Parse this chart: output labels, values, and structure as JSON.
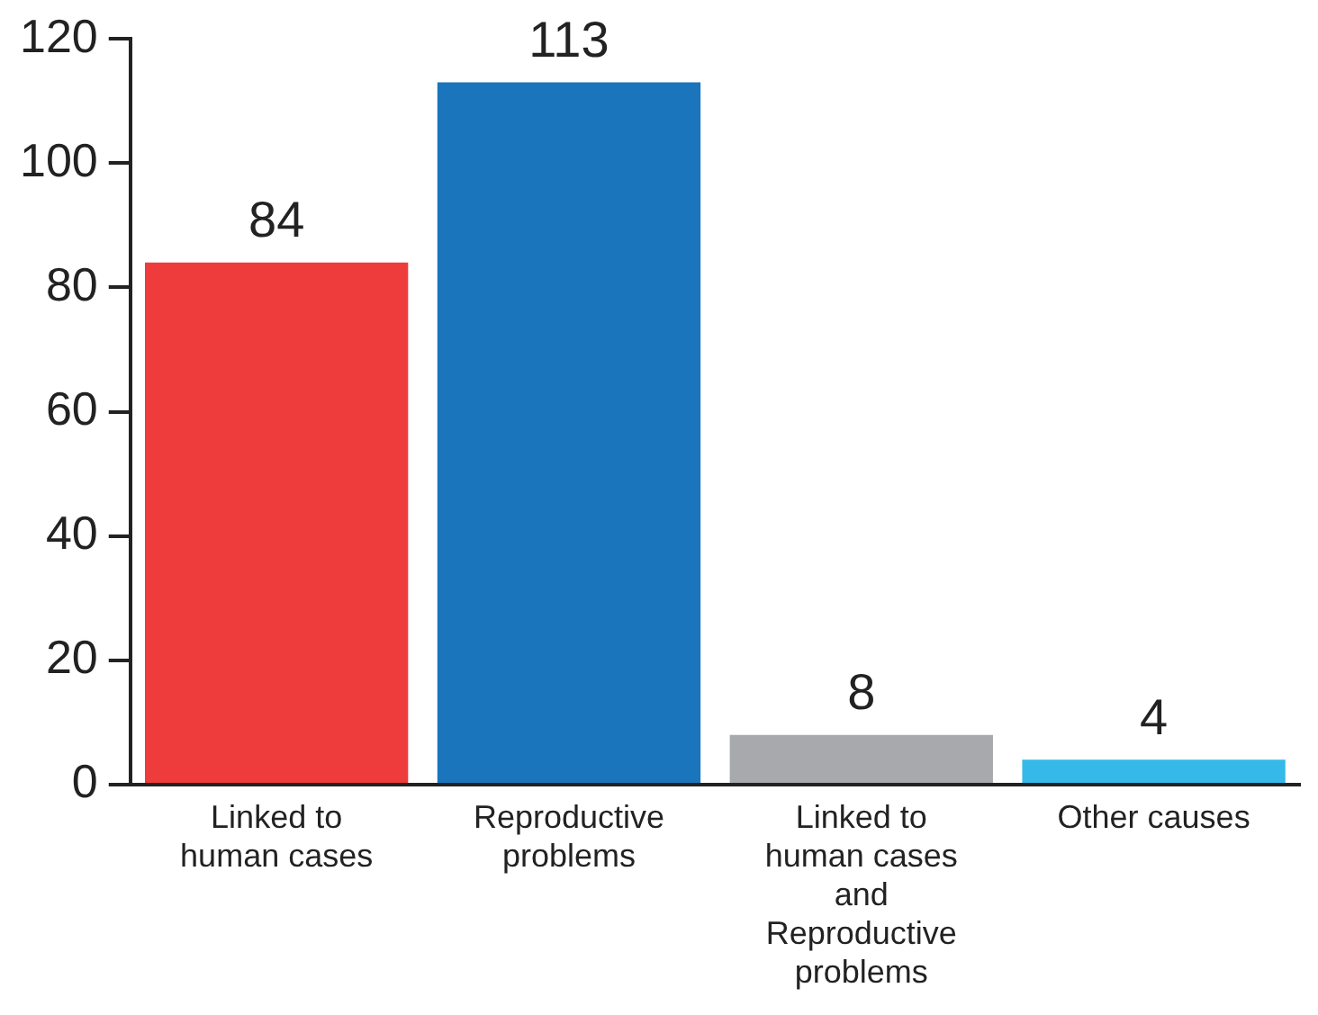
{
  "chart_data": {
    "type": "bar",
    "categories": [
      "Linked to human cases",
      "Reproductive problems",
      "Linked to human cases and Reproductive problems",
      "Other causes"
    ],
    "values": [
      84,
      113,
      8,
      4
    ],
    "colors": [
      "#ee3b3b",
      "#1a75bc",
      "#a7a9ac",
      "#35b9e9"
    ],
    "ylim": [
      0,
      120
    ],
    "yticks": [
      0,
      20,
      40,
      60,
      80,
      100,
      120
    ],
    "data_labels": true,
    "grid": false,
    "legend": false
  }
}
